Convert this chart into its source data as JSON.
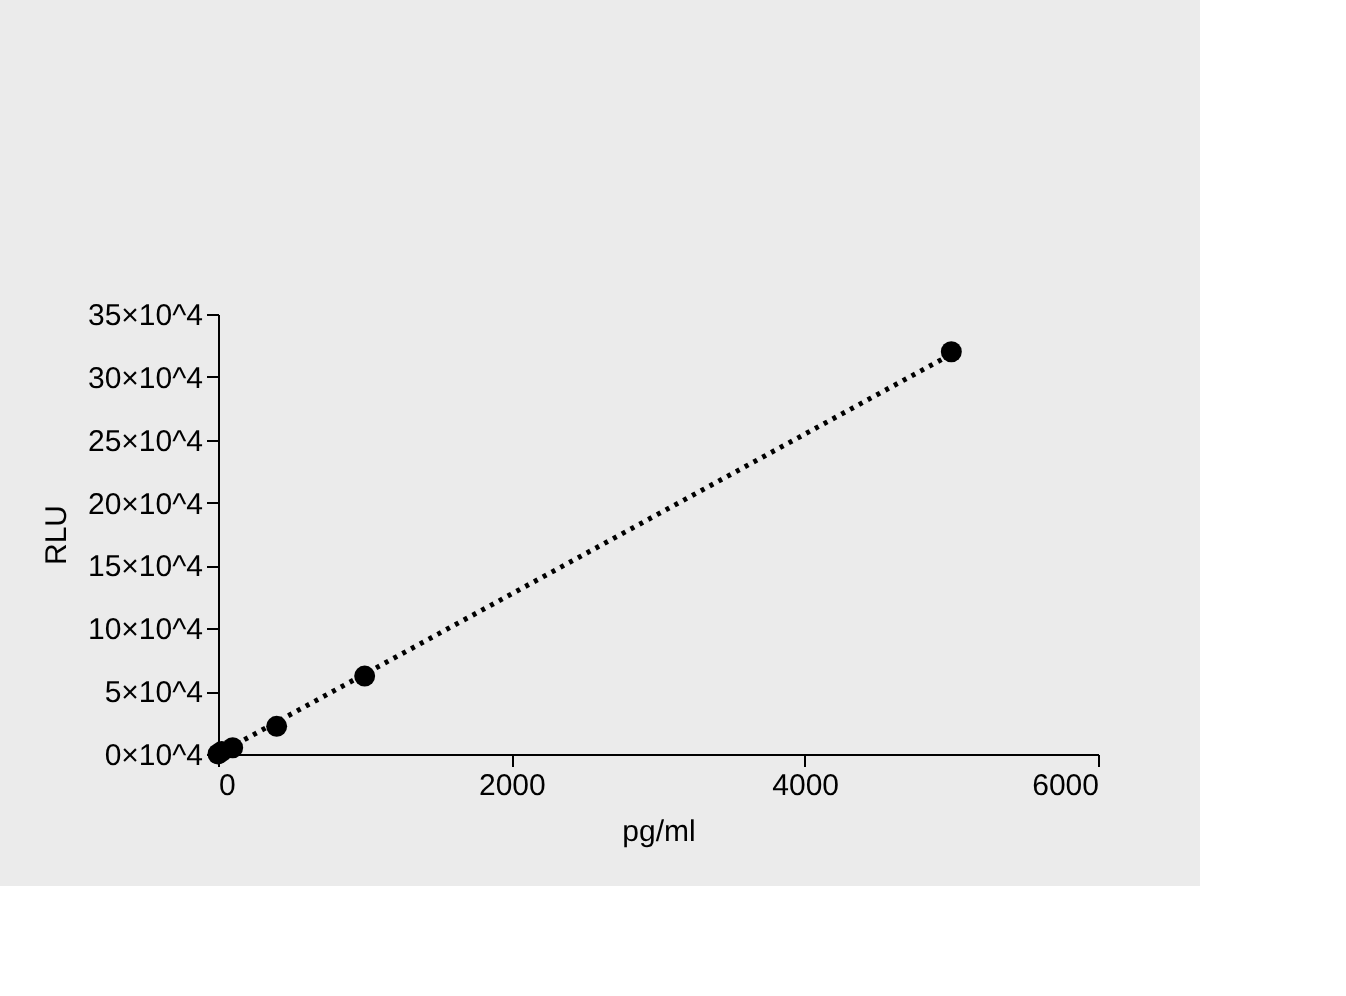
{
  "chart_data": {
    "type": "scatter",
    "xlabel": "pg/ml",
    "ylabel": "RLU",
    "xlim": [
      0,
      6000
    ],
    "xticks": [
      0,
      2000,
      4000,
      6000
    ],
    "ylim": [
      0,
      350000
    ],
    "yticks": [
      {
        "value": 0,
        "label": "0×10^4"
      },
      {
        "value": 50000,
        "label": "5×10^4"
      },
      {
        "value": 100000,
        "label": "10×10^4"
      },
      {
        "value": 150000,
        "label": "15×10^4"
      },
      {
        "value": 200000,
        "label": "20×10^4"
      },
      {
        "value": 250000,
        "label": "25×10^4"
      },
      {
        "value": 300000,
        "label": "30×10^4"
      },
      {
        "value": 350000,
        "label": "35×10^4"
      }
    ],
    "grid": false,
    "legend": false,
    "series": [
      {
        "type": "scatter",
        "color": "#000000",
        "marker": "circle",
        "x": [
          0,
          25,
          100,
          400,
          1000,
          5000
        ],
        "values": [
          0,
          2000,
          5000,
          22000,
          62000,
          320000
        ]
      },
      {
        "type": "line",
        "color": "#000000",
        "line_style": "dotted",
        "marker": "none",
        "x": [
          0,
          5000
        ],
        "values": [
          0,
          318000
        ]
      }
    ]
  }
}
